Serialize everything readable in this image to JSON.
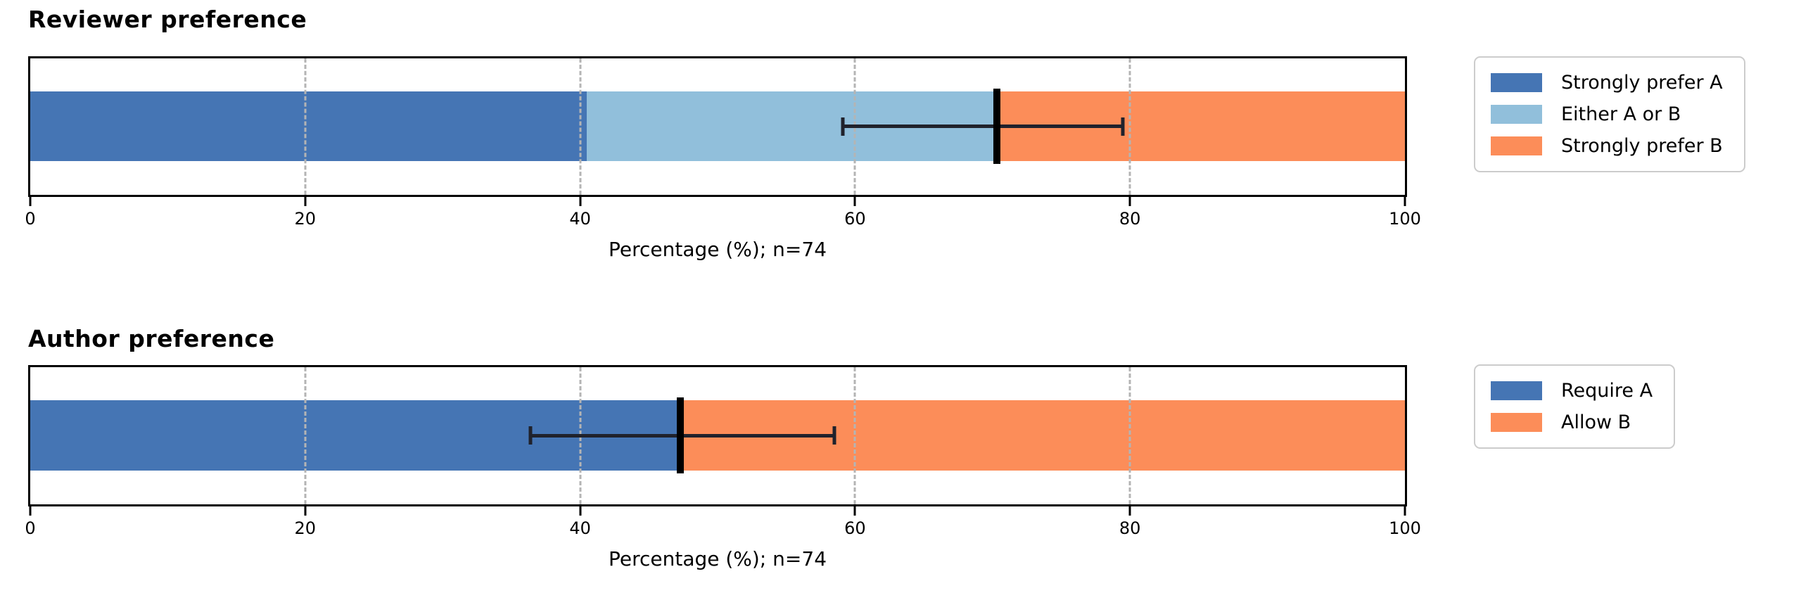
{
  "style": {
    "background": "#ffffff",
    "text_color": "#000000",
    "spine_color": "#000000",
    "grid_color": "#b4b4b4",
    "marker_color": "#000000",
    "error_bar_color": "#20222c",
    "legend_border_color": "#cccccc"
  },
  "chart_data": [
    {
      "type": "bar",
      "subtype": "horizontal_stacked_percentage",
      "title": "Reviewer preference",
      "xlabel": "Percentage (%); n=74",
      "n": 74,
      "xlim": [
        0,
        100
      ],
      "x_ticks": [
        0,
        20,
        40,
        60,
        80,
        100
      ],
      "gridlines": [
        20,
        40,
        60,
        80
      ],
      "grid_style": "dashed",
      "legend_position": "outside-right",
      "segments": [
        {
          "label": "Strongly prefer A",
          "color": "#4575b4",
          "value": 40.5
        },
        {
          "label": "Either A or B",
          "color": "#91bfdb",
          "value": 29.8
        },
        {
          "label": "Strongly prefer B",
          "color": "#fc8d59",
          "value": 29.7
        }
      ],
      "point_estimate": 70.3,
      "error_bar": {
        "low": 59.1,
        "high": 79.5
      }
    },
    {
      "type": "bar",
      "subtype": "horizontal_stacked_percentage",
      "title": "Author preference",
      "xlabel": "Percentage (%); n=74",
      "n": 74,
      "xlim": [
        0,
        100
      ],
      "x_ticks": [
        0,
        20,
        40,
        60,
        80,
        100
      ],
      "gridlines": [
        20,
        40,
        60,
        80
      ],
      "grid_style": "dashed",
      "legend_position": "outside-right",
      "segments": [
        {
          "label": "Require A",
          "color": "#4575b4",
          "value": 47.3
        },
        {
          "label": "Allow B",
          "color": "#fc8d59",
          "value": 52.7
        }
      ],
      "point_estimate": 47.3,
      "error_bar": {
        "low": 36.4,
        "high": 58.5
      }
    }
  ]
}
